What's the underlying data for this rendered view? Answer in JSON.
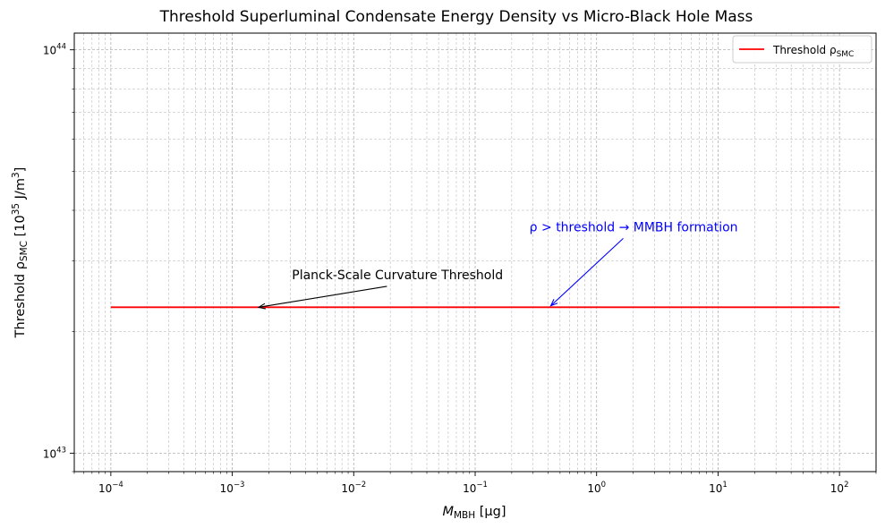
{
  "chart_data": {
    "type": "line",
    "title": "Threshold Superluminal Condensate Energy Density vs Micro-Black Hole Mass",
    "xlabel": {
      "main": "M",
      "sub": "MBH",
      "unit": " [μg]"
    },
    "ylabel": {
      "main": "Threshold ρ",
      "sub": "SMC",
      "unit_pre": " [10",
      "unit_exp": "35",
      "unit_post": " J/m",
      "unit_exp2": "3",
      "unit_close": "]"
    },
    "x_scale": "log",
    "y_scale": "log",
    "xlim": [
      5e-05,
      200
    ],
    "ylim": [
      9e+42,
      1.1e+44
    ],
    "grid": true,
    "legend_placement": "top-right",
    "x_ticks": [
      {
        "value": 0.0001,
        "base": "10",
        "exp": "−4"
      },
      {
        "value": 0.001,
        "base": "10",
        "exp": "−3"
      },
      {
        "value": 0.01,
        "base": "10",
        "exp": "−2"
      },
      {
        "value": 0.1,
        "base": "10",
        "exp": "−1"
      },
      {
        "value": 1,
        "base": "10",
        "exp": "0"
      },
      {
        "value": 10,
        "base": "10",
        "exp": "1"
      },
      {
        "value": 100,
        "base": "10",
        "exp": "2"
      }
    ],
    "y_ticks": [
      {
        "value": 1e+43,
        "base": "10",
        "exp": "43"
      },
      {
        "value": 1e+44,
        "base": "10",
        "exp": "44"
      }
    ],
    "series": [
      {
        "name": "Threshold ρ",
        "name_sub": "SMC",
        "color": "#ff0000",
        "x": [
          0.0001,
          100
        ],
        "y": [
          2.3e+43,
          2.3e+43
        ]
      }
    ],
    "annotations": [
      {
        "text": "Planck-Scale Curvature Threshold",
        "color": "#000000",
        "text_at": [
          0.0031,
          2.7e+43
        ],
        "arrow_to": [
          0.00165,
          2.3e+43
        ]
      },
      {
        "text": "ρ > threshold → MMBH formation",
        "color": "#0000ff",
        "text_at": [
          0.28,
          3.55e+43
        ],
        "arrow_to": [
          0.42,
          2.32e+43
        ]
      }
    ]
  }
}
